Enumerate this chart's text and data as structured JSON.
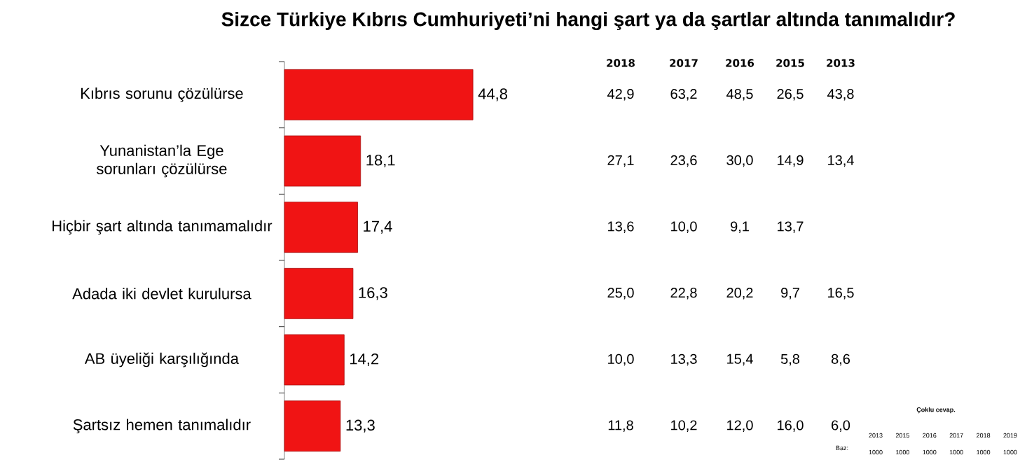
{
  "chart_data": {
    "type": "bar",
    "orientation": "horizontal",
    "title": "Sizce Türkiye Kıbrıs Cumhuriyeti’ni hangi şart ya da şartlar altında tanımalıdır?",
    "categories": [
      "Kıbrıs sorunu çözülürse",
      "Yunanistan’la Ege sorunları çözülürse",
      "Hiçbir şart altında tanımamalıdır",
      "Adada iki devlet kurulursa",
      "AB üyeliği karşılığında",
      "Şartsız hemen tanımalıdır"
    ],
    "values": [
      44.8,
      18.1,
      17.4,
      16.3,
      14.2,
      13.3
    ],
    "value_labels": [
      "44,8",
      "18,1",
      "17,4",
      "16,3",
      "14,2",
      "13,3"
    ],
    "color": "#f01414",
    "annotations": [
      "2018",
      "2017",
      "2016",
      "2015",
      "2013",
      "42,9",
      "63,2",
      "48,5",
      "26,5",
      "43,8",
      "27,1",
      "23,6",
      "30,0",
      "14,9",
      "13,4",
      "13,6",
      "10,0",
      "9,1",
      "13,7",
      null,
      "25,0",
      "22,8",
      "20,2",
      "9,7",
      "16,5",
      "10,0",
      "13,3",
      "15,4",
      "5,8",
      "8,6",
      "11,8",
      "10,2",
      "12,0",
      "16,0",
      "6,0",
      "Çoklu cevap.",
      "Baz:",
      "2013",
      "2015",
      "2016",
      "2017",
      "2018",
      "2019",
      "1000",
      "1000",
      "1000",
      "1000",
      "1000",
      "1000"
    ]
  }
}
